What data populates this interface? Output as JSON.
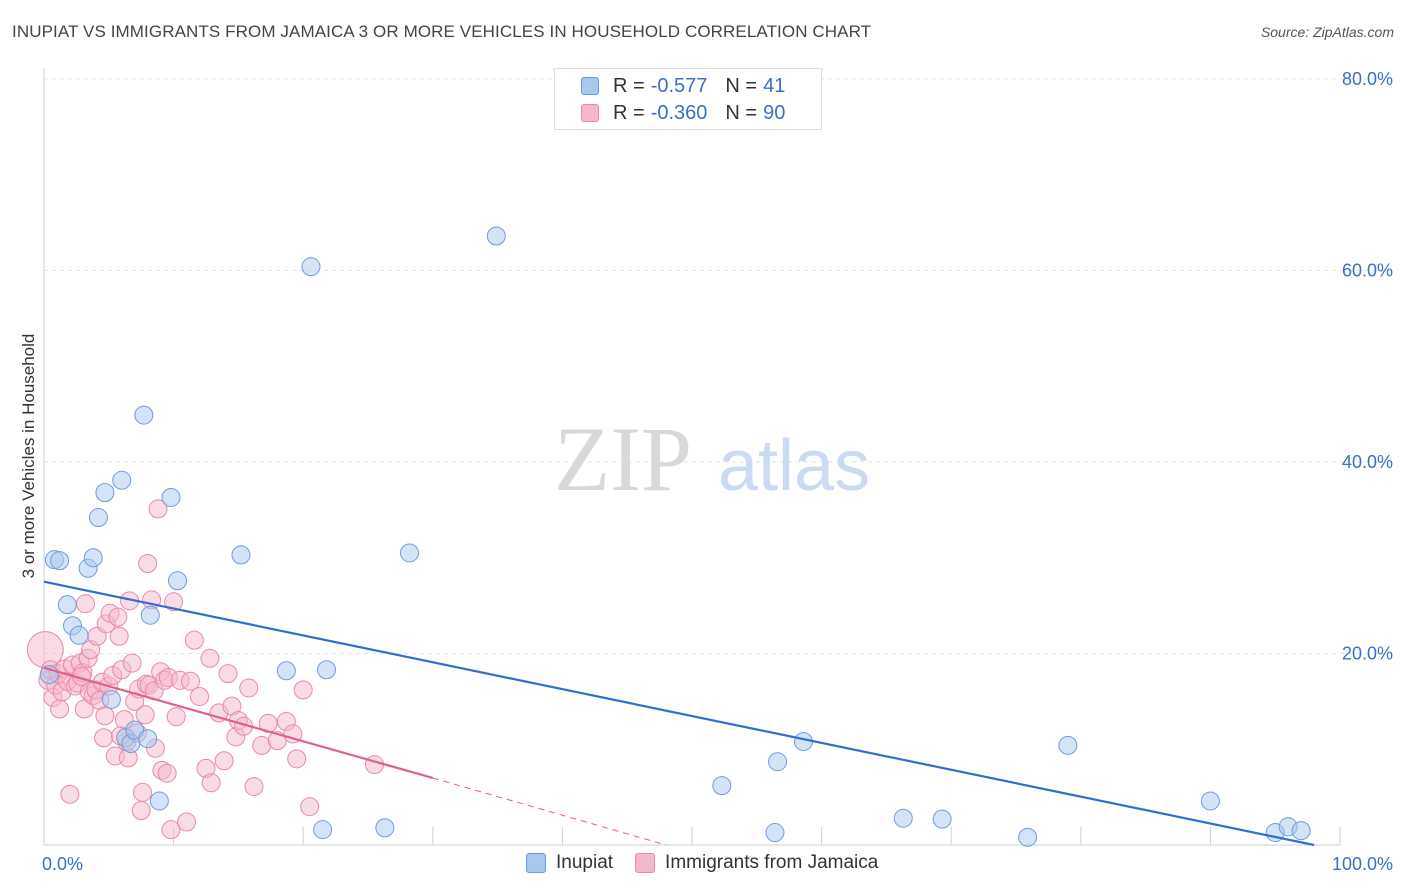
{
  "header": {
    "title": "INUPIAT VS IMMIGRANTS FROM JAMAICA 3 OR MORE VEHICLES IN HOUSEHOLD CORRELATION CHART",
    "source": "Source: ZipAtlas.com"
  },
  "legend": {
    "rows": [
      {
        "r_label": "R =",
        "r_value": "-0.577",
        "n_label": "N =",
        "n_value": "41"
      },
      {
        "r_label": "R =",
        "r_value": "-0.360",
        "n_label": "N =",
        "n_value": "90"
      }
    ]
  },
  "bottom_legend": {
    "series1": "Inupiat",
    "series2": "Immigrants from Jamaica"
  },
  "watermark": {
    "part1": "ZIP",
    "part2": "atlas"
  },
  "colors": {
    "blue_fill": "#a9c8f0",
    "blue_stroke": "#6f9bdc",
    "blue_line": "#2f6fce",
    "pink_fill": "#f5b8cb",
    "pink_stroke": "#e889a8",
    "pink_line": "#e0608a",
    "tick_text": "#3b6fc7",
    "grid": "#e3e3e3"
  },
  "chart_data": {
    "type": "scatter",
    "title": "INUPIAT VS IMMIGRANTS FROM JAMAICA 3 OR MORE VEHICLES IN HOUSEHOLD CORRELATION CHART",
    "xlabel": "",
    "ylabel": "3 or more Vehicles in Household",
    "xlim": [
      0,
      100
    ],
    "ylim": [
      0,
      80
    ],
    "x_tick_labels": [
      "0.0%",
      "100.0%"
    ],
    "y_ticks": [
      20,
      40,
      60,
      80
    ],
    "y_tick_labels": [
      "20.0%",
      "40.0%",
      "60.0%",
      "80.0%"
    ],
    "grid": true,
    "series": [
      {
        "name": "Inupiat",
        "color": "blue",
        "R": -0.577,
        "N": 41,
        "trend": {
          "x": [
            0,
            98
          ],
          "y": [
            27.5,
            0
          ]
        },
        "points": [
          [
            0.4,
            17.8
          ],
          [
            0.8,
            29.8
          ],
          [
            1.2,
            29.7
          ],
          [
            1.8,
            25.1
          ],
          [
            2.2,
            22.9
          ],
          [
            2.7,
            21.9
          ],
          [
            3.4,
            28.9
          ],
          [
            3.8,
            30.0
          ],
          [
            4.2,
            34.2
          ],
          [
            4.7,
            36.8
          ],
          [
            5.2,
            15.2
          ],
          [
            6.0,
            38.1
          ],
          [
            6.3,
            11.2
          ],
          [
            6.7,
            10.6
          ],
          [
            7.0,
            12.0
          ],
          [
            7.7,
            44.9
          ],
          [
            8.0,
            11.1
          ],
          [
            8.2,
            24.0
          ],
          [
            8.9,
            4.6
          ],
          [
            9.8,
            36.3
          ],
          [
            10.3,
            27.6
          ],
          [
            15.2,
            30.3
          ],
          [
            18.7,
            18.2
          ],
          [
            20.6,
            60.4
          ],
          [
            21.5,
            1.6
          ],
          [
            21.8,
            18.3
          ],
          [
            26.3,
            1.8
          ],
          [
            28.2,
            30.5
          ],
          [
            34.9,
            63.6
          ],
          [
            52.3,
            6.2
          ],
          [
            56.4,
            1.3
          ],
          [
            56.6,
            8.7
          ],
          [
            58.6,
            10.8
          ],
          [
            66.3,
            2.8
          ],
          [
            69.3,
            2.7
          ],
          [
            75.9,
            0.8
          ],
          [
            79.0,
            10.4
          ],
          [
            90.0,
            4.6
          ],
          [
            95.0,
            1.3
          ],
          [
            96.0,
            1.9
          ],
          [
            97.0,
            1.5
          ]
        ]
      },
      {
        "name": "Immigrants from Jamaica",
        "color": "pink",
        "R": -0.36,
        "N": 90,
        "trend": {
          "x": [
            0,
            30
          ],
          "y": [
            18.5,
            7.0
          ]
        },
        "trend_extension": {
          "x": [
            30,
            48
          ],
          "y": [
            7.0,
            0.0
          ]
        },
        "points": [
          [
            0.1,
            20.4
          ],
          [
            0.3,
            17.2
          ],
          [
            0.5,
            18.3
          ],
          [
            0.7,
            15.4
          ],
          [
            0.9,
            16.7
          ],
          [
            1.1,
            17.9
          ],
          [
            1.2,
            14.2
          ],
          [
            1.4,
            16.0
          ],
          [
            1.6,
            18.4
          ],
          [
            1.8,
            17.1
          ],
          [
            2.0,
            5.3
          ],
          [
            2.2,
            18.8
          ],
          [
            2.4,
            16.6
          ],
          [
            2.6,
            16.9
          ],
          [
            2.8,
            19.0
          ],
          [
            3.0,
            18.0
          ],
          [
            3.1,
            14.2
          ],
          [
            3.2,
            25.2
          ],
          [
            3.4,
            19.5
          ],
          [
            3.5,
            16.0
          ],
          [
            3.6,
            20.4
          ],
          [
            3.8,
            15.6
          ],
          [
            4.0,
            16.2
          ],
          [
            4.1,
            21.8
          ],
          [
            4.3,
            15.1
          ],
          [
            4.5,
            17.0
          ],
          [
            4.6,
            11.2
          ],
          [
            4.7,
            13.5
          ],
          [
            4.8,
            23.1
          ],
          [
            5.0,
            16.6
          ],
          [
            5.1,
            24.2
          ],
          [
            5.3,
            17.7
          ],
          [
            5.5,
            9.3
          ],
          [
            5.7,
            23.8
          ],
          [
            5.8,
            21.8
          ],
          [
            6.0,
            18.3
          ],
          [
            6.2,
            13.1
          ],
          [
            6.4,
            10.8
          ],
          [
            6.5,
            9.1
          ],
          [
            6.6,
            25.5
          ],
          [
            6.8,
            19.0
          ],
          [
            7.0,
            15.0
          ],
          [
            7.2,
            11.7
          ],
          [
            7.3,
            16.3
          ],
          [
            7.5,
            3.6
          ],
          [
            7.6,
            5.5
          ],
          [
            7.8,
            13.6
          ],
          [
            7.9,
            16.8
          ],
          [
            8.0,
            29.4
          ],
          [
            8.1,
            16.7
          ],
          [
            8.3,
            25.6
          ],
          [
            8.5,
            16.1
          ],
          [
            8.6,
            10.1
          ],
          [
            8.8,
            35.1
          ],
          [
            9.0,
            18.1
          ],
          [
            9.1,
            7.8
          ],
          [
            9.3,
            17.2
          ],
          [
            9.5,
            7.5
          ],
          [
            9.6,
            17.5
          ],
          [
            9.8,
            1.6
          ],
          [
            10.0,
            25.4
          ],
          [
            10.2,
            13.4
          ],
          [
            10.5,
            17.2
          ],
          [
            11.0,
            2.4
          ],
          [
            11.3,
            17.1
          ],
          [
            11.6,
            21.4
          ],
          [
            12.0,
            15.5
          ],
          [
            12.5,
            8.0
          ],
          [
            12.8,
            19.5
          ],
          [
            12.9,
            6.5
          ],
          [
            13.5,
            13.8
          ],
          [
            13.9,
            8.8
          ],
          [
            14.2,
            17.9
          ],
          [
            14.5,
            14.5
          ],
          [
            14.8,
            11.3
          ],
          [
            15.0,
            13.0
          ],
          [
            15.4,
            12.4
          ],
          [
            15.8,
            16.4
          ],
          [
            16.2,
            6.1
          ],
          [
            16.8,
            10.4
          ],
          [
            17.3,
            12.7
          ],
          [
            18.0,
            10.9
          ],
          [
            18.7,
            12.9
          ],
          [
            19.2,
            11.6
          ],
          [
            19.5,
            9.0
          ],
          [
            20.0,
            16.2
          ],
          [
            20.5,
            4.0
          ],
          [
            25.5,
            8.4
          ],
          [
            5.9,
            11.4
          ],
          [
            2.9,
            17.6
          ]
        ]
      }
    ]
  }
}
